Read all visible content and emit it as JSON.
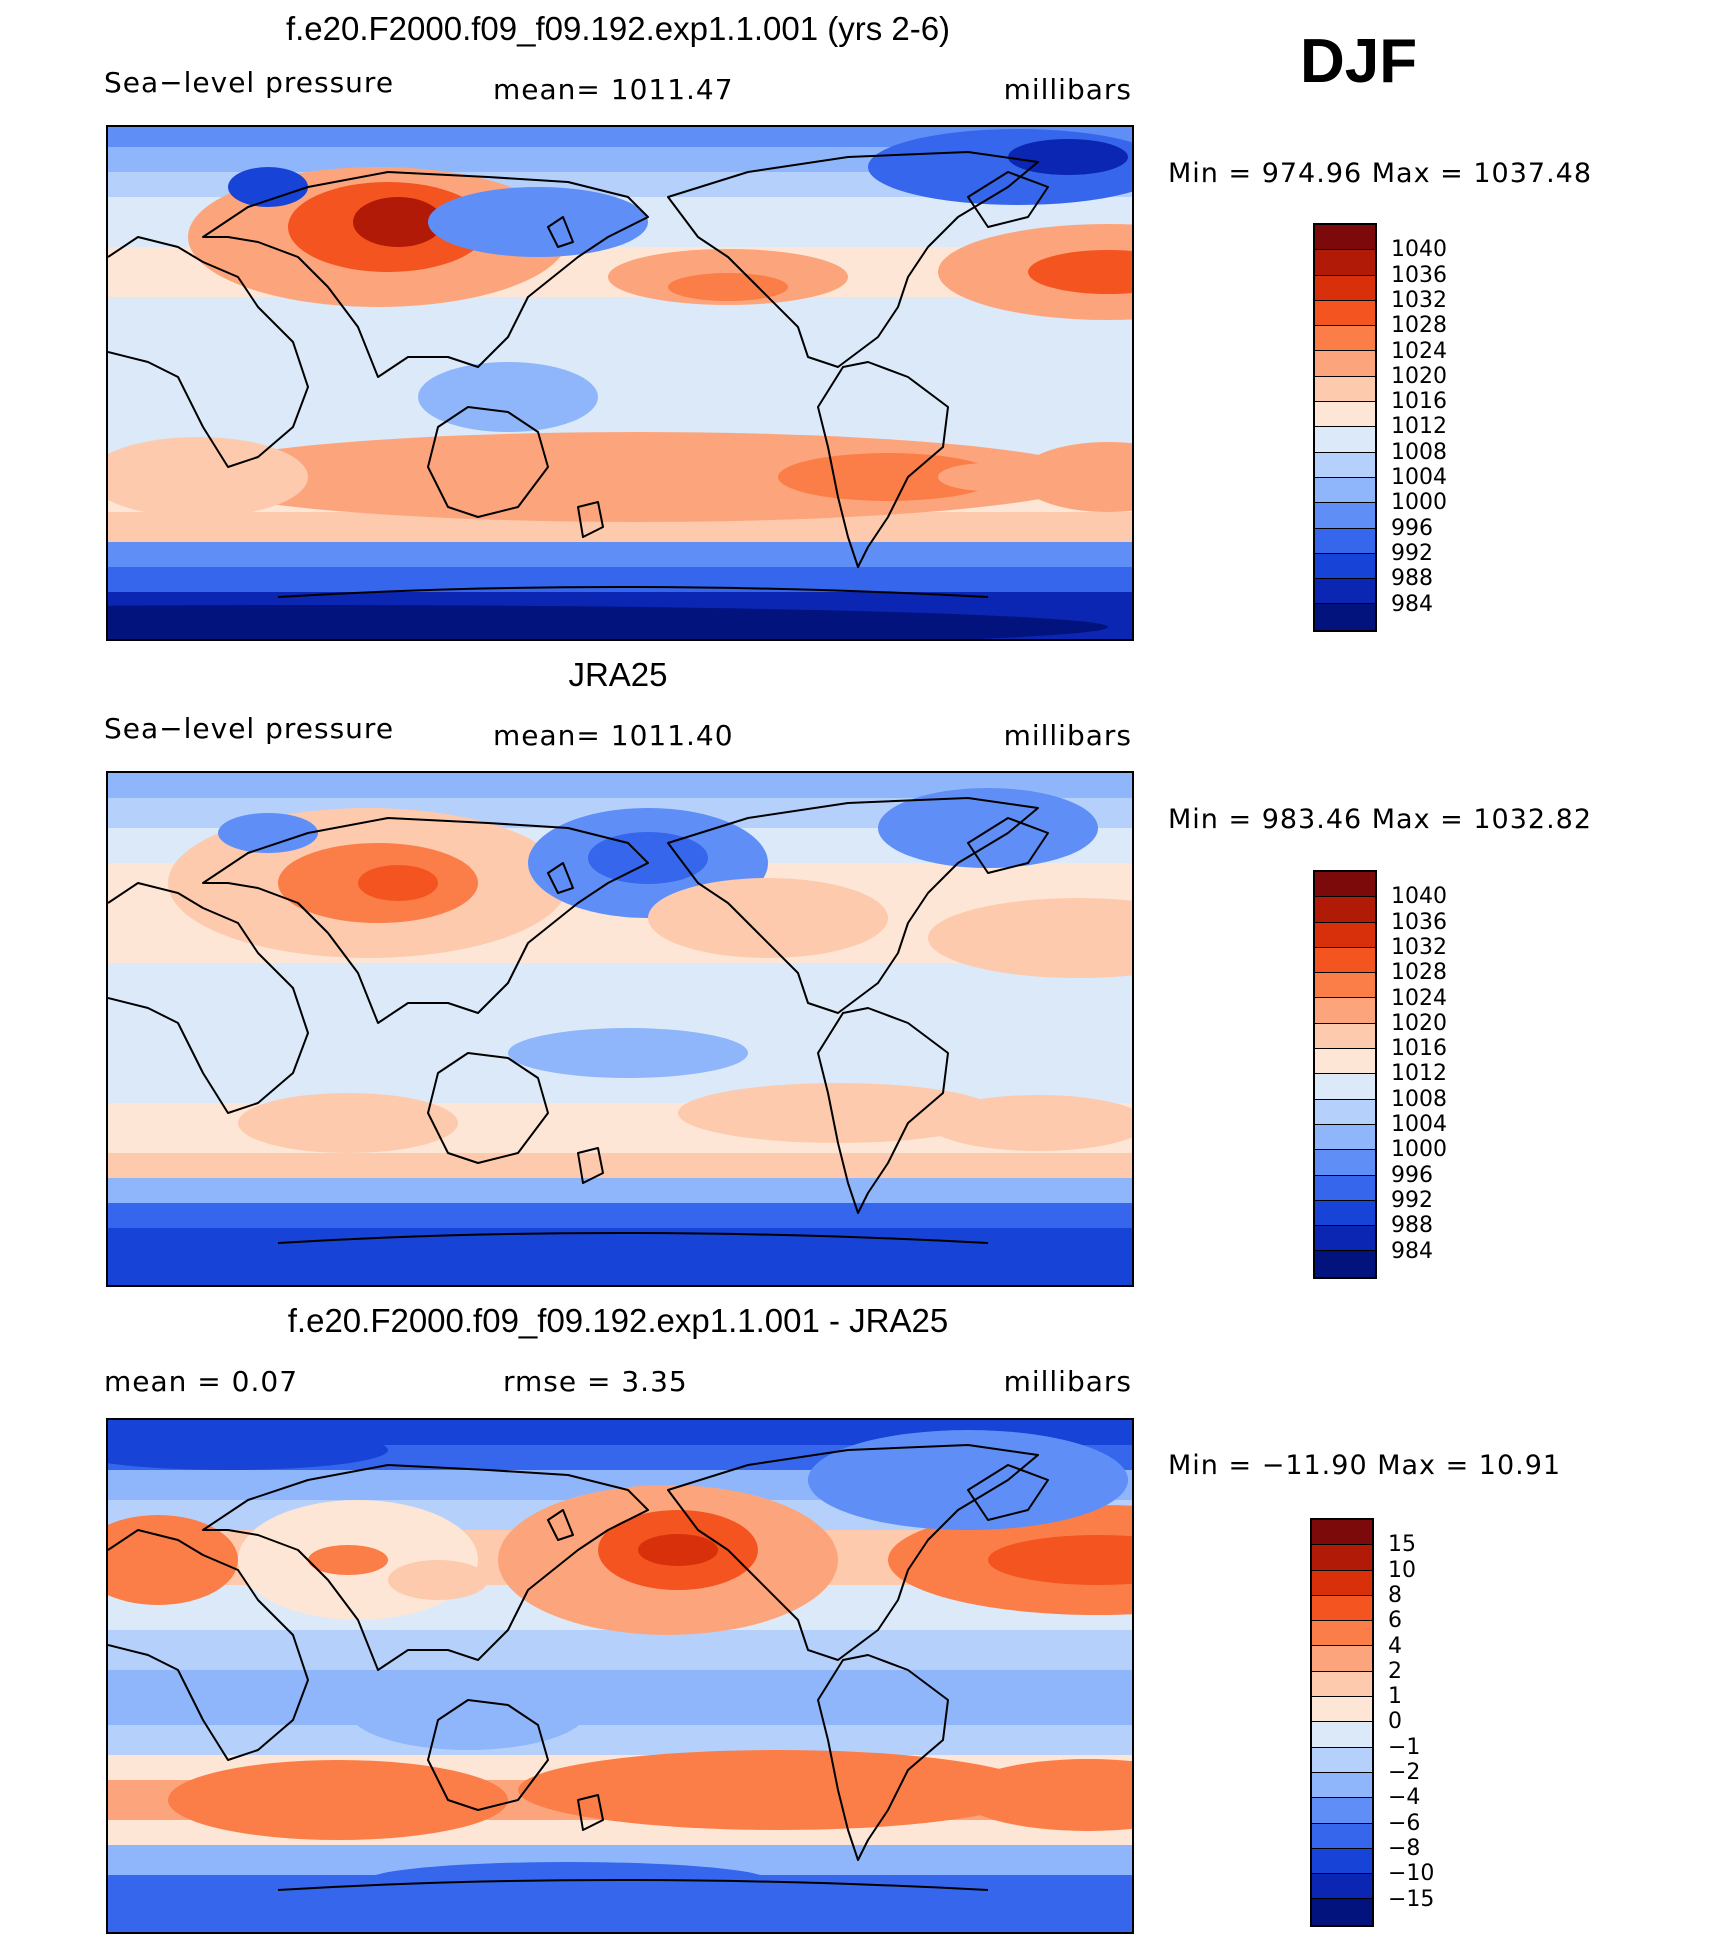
{
  "season": "DJF",
  "panels": [
    {
      "title": "f.e20.F2000.f09_f09.192.exp1.1.001 (yrs 2-6)",
      "left": "Sea−level pressure",
      "middle": "mean=  1011.47",
      "right": "millibars",
      "minmax": "Min  =  974.96  Max  =  1037.48",
      "kind": "model"
    },
    {
      "title": "JRA25",
      "left": "Sea−level pressure",
      "middle": "mean=  1011.40",
      "right": "millibars",
      "minmax": "Min  =  983.46  Max  =  1032.82",
      "kind": "obs"
    },
    {
      "title": "f.e20.F2000.f09_f09.192.exp1.1.001 - JRA25",
      "left": "mean  =      0.07",
      "middle": "rmse  =      3.35",
      "right": "millibars",
      "minmax": "Min  =  −11.90  Max  =    10.91",
      "kind": "diff"
    }
  ],
  "colorbars": {
    "slp": {
      "labels": [
        "1040",
        "1036",
        "1032",
        "1028",
        "1024",
        "1020",
        "1016",
        "1012",
        "1008",
        "1004",
        "1000",
        "996",
        "992",
        "988",
        "984"
      ],
      "colors": [
        "#7d0a0a",
        "#b11a06",
        "#d8300b",
        "#f4541f",
        "#fb7d47",
        "#fca57c",
        "#fdcaae",
        "#fde6d6",
        "#dbe9f9",
        "#b5d1fb",
        "#8fb6fb",
        "#5f8ff6",
        "#3566ec",
        "#1743d6",
        "#0a26b3",
        "#03137d"
      ]
    },
    "diff": {
      "labels": [
        "15",
        "10",
        "8",
        "6",
        "4",
        "2",
        "1",
        "0",
        "−1",
        "−2",
        "−4",
        "−6",
        "−8",
        "−10",
        "−15"
      ],
      "colors": [
        "#7d0a0a",
        "#b11a06",
        "#d8300b",
        "#f4541f",
        "#fb7d47",
        "#fca57c",
        "#fdcaae",
        "#fde6d6",
        "#dbe9f9",
        "#b5d1fb",
        "#8fb6fb",
        "#5f8ff6",
        "#3566ec",
        "#1743d6",
        "#0a26b3",
        "#03137d"
      ]
    }
  }
}
